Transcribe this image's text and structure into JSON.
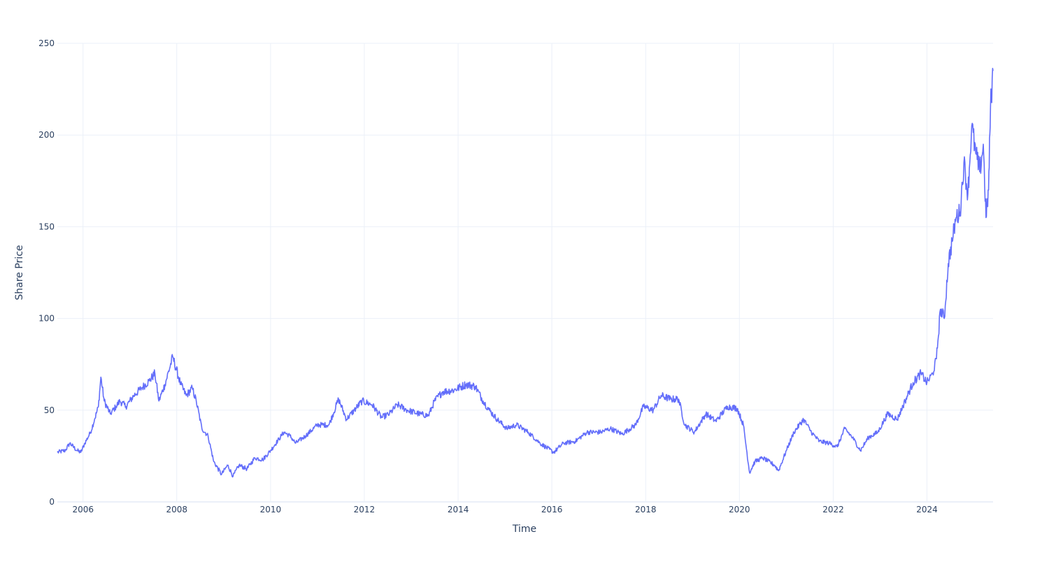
{
  "chart_data": {
    "type": "line",
    "title": "",
    "xlabel": "Time",
    "ylabel": "Share Price",
    "x_range": [
      "2005-06-15",
      "2025-05-30"
    ],
    "ylim": [
      0,
      250
    ],
    "grid": true,
    "legend": "none",
    "colors": {
      "line": "#636efa",
      "grid": "#ebf0f8",
      "axis_text": "#2a3f5f"
    },
    "x_ticks": [
      {
        "date": "2006-01-01",
        "label": "2006"
      },
      {
        "date": "2008-01-01",
        "label": "2008"
      },
      {
        "date": "2010-01-01",
        "label": "2010"
      },
      {
        "date": "2012-01-01",
        "label": "2012"
      },
      {
        "date": "2014-01-01",
        "label": "2014"
      },
      {
        "date": "2016-01-01",
        "label": "2016"
      },
      {
        "date": "2018-01-01",
        "label": "2018"
      },
      {
        "date": "2020-01-01",
        "label": "2020"
      },
      {
        "date": "2022-01-01",
        "label": "2022"
      },
      {
        "date": "2024-01-01",
        "label": "2024"
      }
    ],
    "y_ticks": [
      {
        "value": 0,
        "label": "0"
      },
      {
        "value": 50,
        "label": "50"
      },
      {
        "value": 100,
        "label": "100"
      },
      {
        "value": 150,
        "label": "150"
      },
      {
        "value": 200,
        "label": "200"
      },
      {
        "value": 250,
        "label": "250"
      }
    ],
    "series": [
      {
        "name": "",
        "points": [
          [
            "2005-06-15",
            27
          ],
          [
            "2005-08-15",
            28
          ],
          [
            "2005-09-20",
            32
          ],
          [
            "2005-11-15",
            28
          ],
          [
            "2005-12-15",
            27
          ],
          [
            "2006-01-15",
            32
          ],
          [
            "2006-03-01",
            38
          ],
          [
            "2006-04-01",
            45
          ],
          [
            "2006-05-01",
            52
          ],
          [
            "2006-05-20",
            68
          ],
          [
            "2006-06-15",
            55
          ],
          [
            "2006-08-01",
            48
          ],
          [
            "2006-09-15",
            52
          ],
          [
            "2006-10-15",
            55
          ],
          [
            "2006-12-01",
            52
          ],
          [
            "2007-02-01",
            58
          ],
          [
            "2007-04-01",
            62
          ],
          [
            "2007-06-01",
            66
          ],
          [
            "2007-07-15",
            70
          ],
          [
            "2007-08-15",
            55
          ],
          [
            "2007-10-01",
            64
          ],
          [
            "2007-12-01",
            79
          ],
          [
            "2008-02-01",
            64
          ],
          [
            "2008-03-15",
            58
          ],
          [
            "2008-05-01",
            62
          ],
          [
            "2008-06-01",
            55
          ],
          [
            "2008-07-15",
            40
          ],
          [
            "2008-09-01",
            36
          ],
          [
            "2008-10-15",
            22
          ],
          [
            "2008-12-15",
            15
          ],
          [
            "2009-02-01",
            20
          ],
          [
            "2009-03-15",
            14
          ],
          [
            "2009-05-01",
            20
          ],
          [
            "2009-07-01",
            18
          ],
          [
            "2009-09-01",
            24
          ],
          [
            "2009-11-01",
            23
          ],
          [
            "2010-01-01",
            28
          ],
          [
            "2010-04-15",
            38
          ],
          [
            "2010-06-01",
            36
          ],
          [
            "2010-07-15",
            32
          ],
          [
            "2010-10-01",
            36
          ],
          [
            "2011-01-01",
            42
          ],
          [
            "2011-04-01",
            42
          ],
          [
            "2011-06-15",
            56
          ],
          [
            "2011-08-15",
            45
          ],
          [
            "2011-10-15",
            50
          ],
          [
            "2011-12-15",
            55
          ],
          [
            "2012-03-01",
            53
          ],
          [
            "2012-05-15",
            46
          ],
          [
            "2012-07-15",
            48
          ],
          [
            "2012-09-15",
            53
          ],
          [
            "2012-12-01",
            50
          ],
          [
            "2013-03-01",
            48
          ],
          [
            "2013-05-15",
            47
          ],
          [
            "2013-07-01",
            55
          ],
          [
            "2013-09-01",
            60
          ],
          [
            "2013-12-01",
            61
          ],
          [
            "2014-03-01",
            64
          ],
          [
            "2014-05-15",
            63
          ],
          [
            "2014-07-15",
            55
          ],
          [
            "2014-09-01",
            50
          ],
          [
            "2014-11-01",
            45
          ],
          [
            "2015-01-15",
            40
          ],
          [
            "2015-04-01",
            42
          ],
          [
            "2015-07-01",
            38
          ],
          [
            "2015-10-01",
            32
          ],
          [
            "2016-01-15",
            27
          ],
          [
            "2016-04-01",
            32
          ],
          [
            "2016-07-01",
            33
          ],
          [
            "2016-10-01",
            38
          ],
          [
            "2017-01-15",
            38
          ],
          [
            "2017-04-01",
            40
          ],
          [
            "2017-07-01",
            37
          ],
          [
            "2017-10-15",
            42
          ],
          [
            "2017-12-15",
            52
          ],
          [
            "2018-03-01",
            50
          ],
          [
            "2018-05-01",
            58
          ],
          [
            "2018-07-15",
            56
          ],
          [
            "2018-09-15",
            56
          ],
          [
            "2018-11-01",
            42
          ],
          [
            "2019-01-15",
            38
          ],
          [
            "2019-04-15",
            48
          ],
          [
            "2019-07-01",
            44
          ],
          [
            "2019-10-01",
            52
          ],
          [
            "2019-12-15",
            51
          ],
          [
            "2020-02-01",
            42
          ],
          [
            "2020-03-20",
            16
          ],
          [
            "2020-05-01",
            22
          ],
          [
            "2020-07-01",
            24
          ],
          [
            "2020-10-01",
            20
          ],
          [
            "2020-11-01",
            17
          ],
          [
            "2021-01-01",
            28
          ],
          [
            "2021-03-01",
            38
          ],
          [
            "2021-05-15",
            45
          ],
          [
            "2021-07-15",
            38
          ],
          [
            "2021-09-15",
            33
          ],
          [
            "2021-12-01",
            32
          ],
          [
            "2022-02-01",
            30
          ],
          [
            "2022-04-01",
            40
          ],
          [
            "2022-06-01",
            35
          ],
          [
            "2022-08-01",
            28
          ],
          [
            "2022-10-01",
            35
          ],
          [
            "2022-12-15",
            38
          ],
          [
            "2023-03-01",
            48
          ],
          [
            "2023-05-15",
            45
          ],
          [
            "2023-07-15",
            55
          ],
          [
            "2023-09-15",
            65
          ],
          [
            "2023-11-15",
            70
          ],
          [
            "2024-01-01",
            65
          ],
          [
            "2024-02-15",
            70
          ],
          [
            "2024-03-15",
            78
          ],
          [
            "2024-04-15",
            105
          ],
          [
            "2024-05-15",
            100
          ],
          [
            "2024-06-15",
            130
          ],
          [
            "2024-07-15",
            142
          ],
          [
            "2024-08-15",
            155
          ],
          [
            "2024-09-15",
            158
          ],
          [
            "2024-10-15",
            185
          ],
          [
            "2024-11-15",
            168
          ],
          [
            "2024-12-15",
            205
          ],
          [
            "2025-01-15",
            190
          ],
          [
            "2025-02-15",
            180
          ],
          [
            "2025-03-15",
            195
          ],
          [
            "2025-04-05",
            155
          ],
          [
            "2025-04-25",
            170
          ],
          [
            "2025-05-10",
            215
          ],
          [
            "2025-05-30",
            235
          ]
        ]
      }
    ]
  }
}
